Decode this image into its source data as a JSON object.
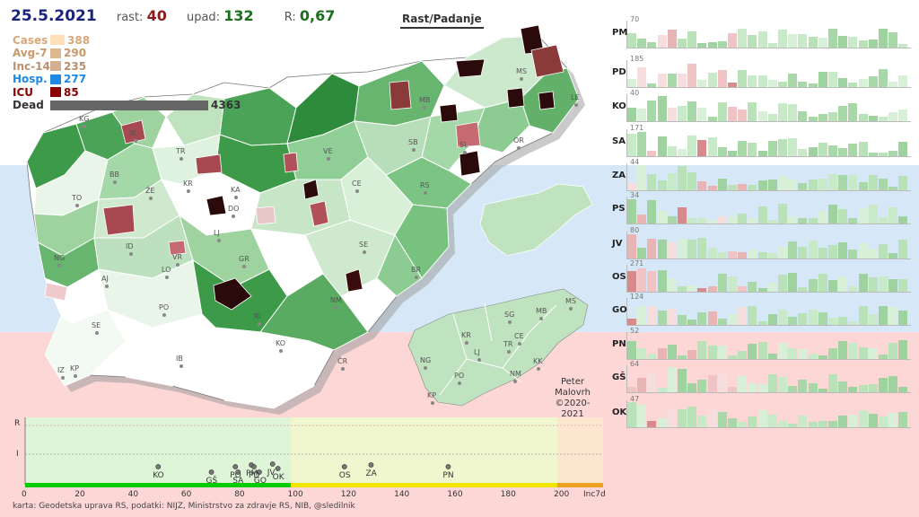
{
  "header": {
    "date": "25.5.2021",
    "rast_label": "rast:",
    "rast_value": "40",
    "upad_label": "upad:",
    "upad_value": "132",
    "r_label": "R:",
    "r_value": "0,67",
    "toggle_label": "Rast/Padanje"
  },
  "stats": [
    {
      "label": "Cases",
      "value": "388",
      "color": "#ffe0b8",
      "label_color": "#d8a878",
      "fraction": 0.09
    },
    {
      "label": "Avg-7",
      "value": "290",
      "color": "#e0b890",
      "label_color": "#c89868",
      "fraction": 0.067
    },
    {
      "label": "Inc-14",
      "value": "235",
      "color": "#d4b090",
      "label_color": "#b89070",
      "fraction": 0.054
    },
    {
      "label": "Hosp.",
      "value": "277",
      "color": "#1e88e5",
      "label_color": "#1e88e5",
      "fraction": 0.064
    },
    {
      "label": "ICU",
      "value": "85",
      "color": "#8b0000",
      "label_color": "#8b0000",
      "fraction": 0.02
    },
    {
      "label": "Dead",
      "value": "4363",
      "color": "#666666",
      "label_color": "#333333",
      "fraction": 1.0
    }
  ],
  "map": {
    "region_labels": [
      "KG",
      "JE",
      "TR",
      "BB",
      "ŽE",
      "KR",
      "KA",
      "TO",
      "ID",
      "DO",
      "LJ",
      "NG",
      "VR",
      "LO",
      "GR",
      "AJ",
      "SE",
      "PO",
      "RI",
      "KO",
      "IB",
      "IZ",
      "KP",
      "MB",
      "MS",
      "LE",
      "VE",
      "SB",
      "SL",
      "CE",
      "RS",
      "OR",
      "SE",
      "BR",
      "NM",
      "ČR"
    ],
    "mini_labels": [
      "MS",
      "MB",
      "SG",
      "CE",
      "KR",
      "TR",
      "NG",
      "LJ",
      "KK",
      "PO",
      "NM",
      "KP"
    ]
  },
  "scatter": {
    "y_labels": [
      "R",
      "I"
    ],
    "x_ticks": [
      "0",
      "20",
      "40",
      "60",
      "80",
      "100",
      "120",
      "140",
      "160",
      "180",
      "200"
    ],
    "x_unit": "Inc7d",
    "points": [
      {
        "label": "KO",
        "x": 50
      },
      {
        "label": "GŠ",
        "x": 70
      },
      {
        "label": "PO",
        "x": 79
      },
      {
        "label": "SA",
        "x": 80
      },
      {
        "label": "PM",
        "x": 85
      },
      {
        "label": "GO",
        "x": 88
      },
      {
        "label": "JV",
        "x": 93
      },
      {
        "label": "PD",
        "x": 86
      },
      {
        "label": "OK",
        "x": 95
      },
      {
        "label": "OS",
        "x": 120
      },
      {
        "label": "ZA",
        "x": 130
      },
      {
        "label": "PN",
        "x": 159
      }
    ],
    "xlim": [
      0,
      220
    ]
  },
  "credit": {
    "line1": "Peter",
    "line2": "Malovrh",
    "line3": "©2020-2021"
  },
  "footer": "karta: Geodetska uprava RS,  podatki: NIJZ, Ministrstvo za zdravje RS, NIB, @sledilnik",
  "panels": [
    {
      "label": "PM",
      "max": "70"
    },
    {
      "label": "PD",
      "max": "185"
    },
    {
      "label": "KO",
      "max": "40"
    },
    {
      "label": "SA",
      "max": "171"
    },
    {
      "label": "ZA",
      "max": "44"
    },
    {
      "label": "PS",
      "max": "34"
    },
    {
      "label": "JV",
      "max": "80"
    },
    {
      "label": "OS",
      "max": "271"
    },
    {
      "label": "GO",
      "max": "124"
    },
    {
      "label": "PN",
      "max": "52"
    },
    {
      "label": "GŠ",
      "max": "64"
    },
    {
      "label": "OK",
      "max": "47"
    }
  ]
}
